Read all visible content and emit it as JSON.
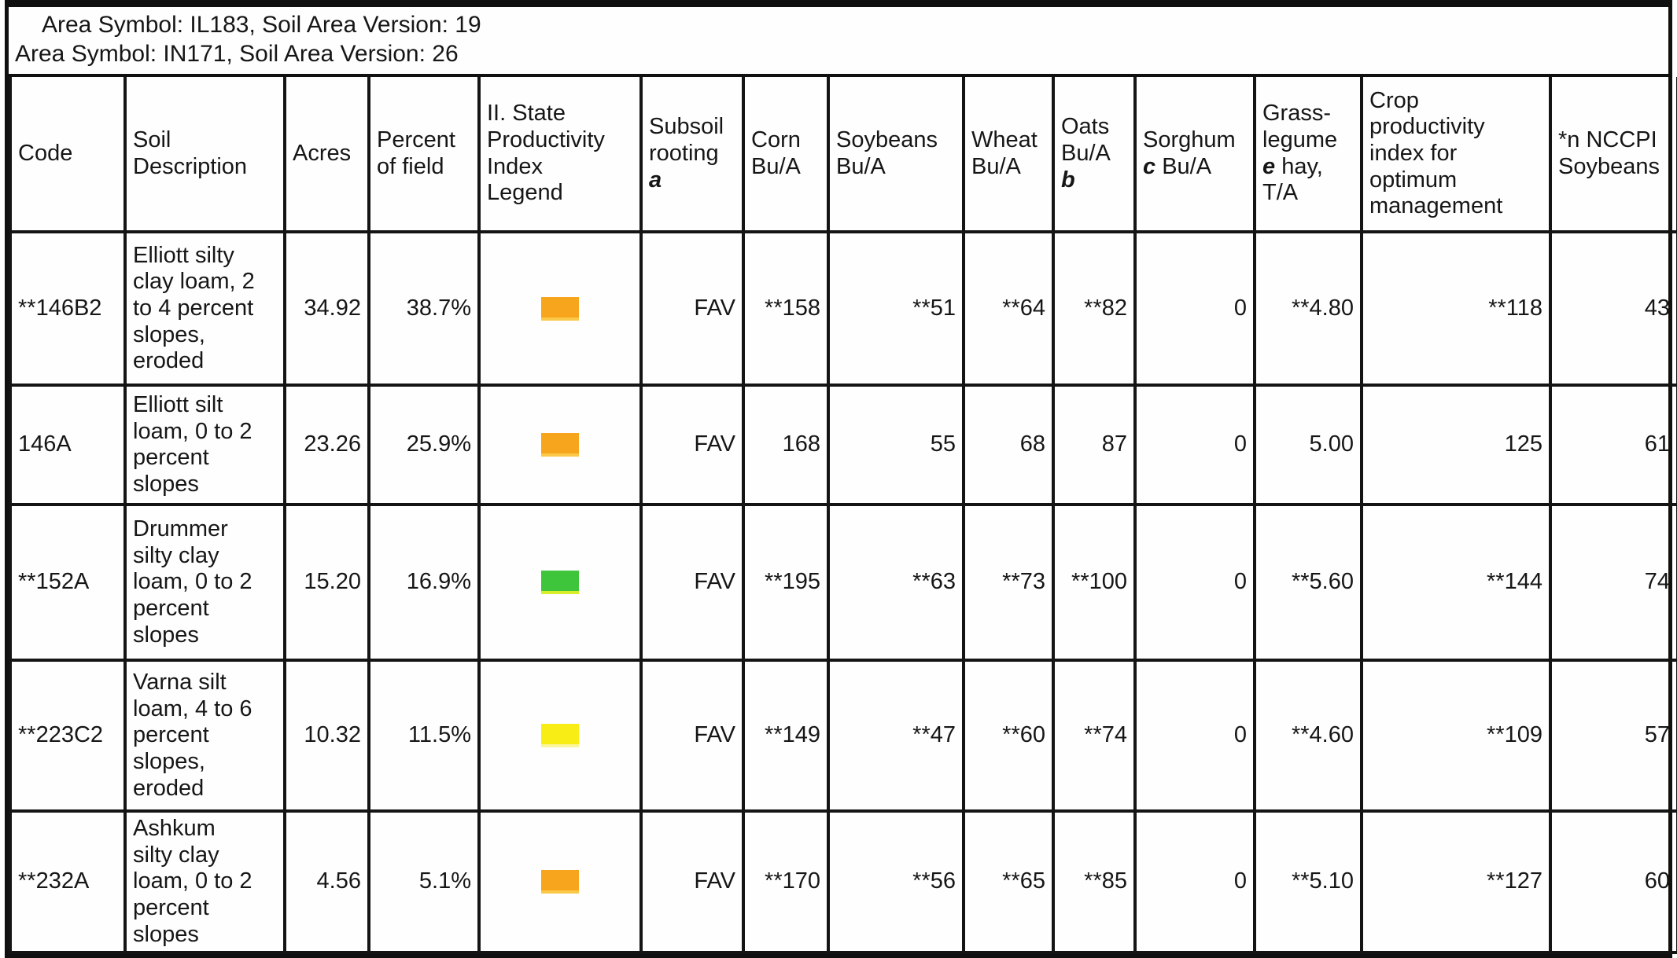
{
  "header": {
    "lines": [
      "Area Symbol: IL183, Soil Area Version: 19",
      "Area Symbol: IN171, Soil Area Version: 26"
    ]
  },
  "legend_colors": {
    "orange": {
      "fill": "#F7A51D",
      "edge": "#FBC94A"
    },
    "green": {
      "fill": "#3EC53B",
      "edge": "#D9ED2F"
    },
    "yellow": {
      "fill": "#F8EE16",
      "edge": "#FBF59B"
    }
  },
  "table": {
    "columns": [
      {
        "id": "code",
        "label": "Code",
        "align": "left"
      },
      {
        "id": "description",
        "label": "Soil\nDescription",
        "align": "left"
      },
      {
        "id": "acres",
        "label": "Acres",
        "align": "right"
      },
      {
        "id": "percent",
        "label": "Percent\nof field",
        "align": "right"
      },
      {
        "id": "legend",
        "label": "II. State\nProductivity\nIndex\nLegend",
        "align": "center"
      },
      {
        "id": "subsoil",
        "label": "Subsoil\nrooting\n",
        "note": "a",
        "align": "right"
      },
      {
        "id": "corn",
        "label": "Corn\nBu/A",
        "align": "right"
      },
      {
        "id": "soybeans",
        "label": "Soybeans\nBu/A",
        "align": "right"
      },
      {
        "id": "wheat",
        "label": "Wheat\nBu/A",
        "align": "right"
      },
      {
        "id": "oats",
        "label": "Oats\nBu/A\n",
        "note": "b",
        "align": "right"
      },
      {
        "id": "sorghum",
        "label": "Sorghum\n",
        "note": "c",
        "label_post": " Bu/A",
        "align": "right"
      },
      {
        "id": "grass_legume",
        "label": "Grass-\nlegume\n",
        "note": "e",
        "label_post": " hay,\nT/A",
        "align": "right"
      },
      {
        "id": "crop_index",
        "label": "Crop\nproductivity\nindex for\noptimum\nmanagement",
        "align": "right"
      },
      {
        "id": "nccpi",
        "label": "*n NCCPI\nSoybeans",
        "align": "right"
      }
    ],
    "rows": [
      {
        "code": "**146B2",
        "description": "Elliott silty\nclay loam, 2\nto 4 percent\nslopes,\neroded",
        "acres": "34.92",
        "percent": "38.7%",
        "legend": "orange",
        "subsoil": "FAV",
        "corn": "**158",
        "soybeans": "**51",
        "wheat": "**64",
        "oats": "**82",
        "sorghum": "0",
        "grass_legume": "**4.80",
        "crop_index": "**118",
        "nccpi": "43"
      },
      {
        "code": "146A",
        "description": "Elliott silt\nloam, 0 to 2\npercent\nslopes",
        "acres": "23.26",
        "percent": "25.9%",
        "legend": "orange",
        "subsoil": "FAV",
        "corn": "168",
        "soybeans": "55",
        "wheat": "68",
        "oats": "87",
        "sorghum": "0",
        "grass_legume": "5.00",
        "crop_index": "125",
        "nccpi": "61"
      },
      {
        "code": "**152A",
        "description": "Drummer\nsilty clay\nloam, 0 to 2\npercent\nslopes",
        "acres": "15.20",
        "percent": "16.9%",
        "legend": "green",
        "subsoil": "FAV",
        "corn": "**195",
        "soybeans": "**63",
        "wheat": "**73",
        "oats": "**100",
        "sorghum": "0",
        "grass_legume": "**5.60",
        "crop_index": "**144",
        "nccpi": "74"
      },
      {
        "code": "**223C2",
        "description": "Varna silt\nloam, 4 to 6\npercent\nslopes,\neroded",
        "acres": "10.32",
        "percent": "11.5%",
        "legend": "yellow",
        "subsoil": "FAV",
        "corn": "**149",
        "soybeans": "**47",
        "wheat": "**60",
        "oats": "**74",
        "sorghum": "0",
        "grass_legume": "**4.60",
        "crop_index": "**109",
        "nccpi": "57"
      },
      {
        "code": "**232A",
        "description": "Ashkum\nsilty clay\nloam, 0 to 2\npercent\nslopes",
        "acres": "4.56",
        "percent": "5.1%",
        "legend": "orange",
        "subsoil": "FAV",
        "corn": "**170",
        "soybeans": "**56",
        "wheat": "**65",
        "oats": "**85",
        "sorghum": "0",
        "grass_legume": "**5.10",
        "crop_index": "**127",
        "nccpi": "60"
      }
    ]
  }
}
